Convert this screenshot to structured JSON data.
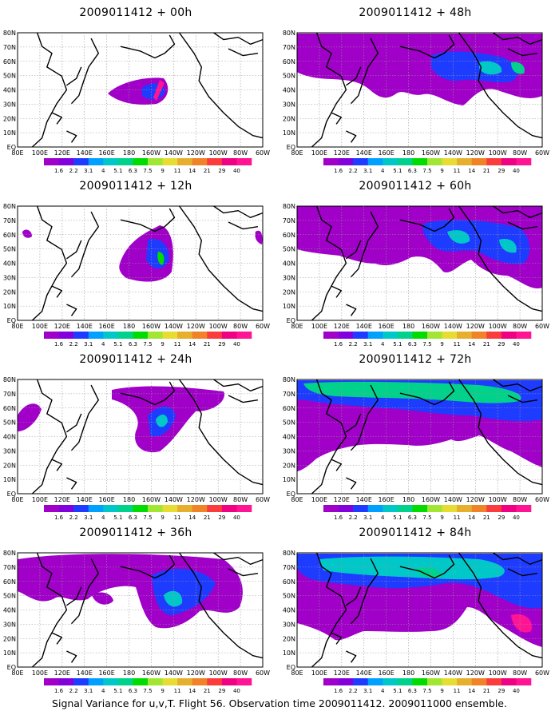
{
  "panels": [
    {
      "title": "2009011412 + 00h"
    },
    {
      "title": "2009011412 + 12h"
    },
    {
      "title": "2009011412 + 24h"
    },
    {
      "title": "2009011412 + 36h"
    },
    {
      "title": "2009011412 + 48h"
    },
    {
      "title": "2009011412 + 60h"
    },
    {
      "title": "2009011412 + 72h"
    },
    {
      "title": "2009011412 + 84h"
    }
  ],
  "lat_labels": [
    "80N",
    "70N",
    "60N",
    "50N",
    "40N",
    "30N",
    "20N",
    "10N",
    "EQ"
  ],
  "lon_labels": [
    "80E",
    "100E",
    "120E",
    "140E",
    "160E",
    "180",
    "160W",
    "140W",
    "120W",
    "100W",
    "80W",
    "60W"
  ],
  "colorbar": {
    "labels": [
      "1.6",
      "2.2",
      "3.1",
      "4",
      "5.1",
      "6.3",
      "7.5",
      "9",
      "11",
      "14",
      "21",
      "29",
      "40"
    ],
    "colors": [
      "#a000c8",
      "#8200dc",
      "#1e3cff",
      "#00a0ff",
      "#00c8c8",
      "#00d28c",
      "#00dc00",
      "#a0e632",
      "#e6dc32",
      "#e6af2d",
      "#f08228",
      "#fa3c3c",
      "#f00082",
      "#ff1493"
    ]
  },
  "footer": "Signal Variance for u,v,T. Flight 56. Observation time 2009011412. 2009011000 ensemble."
}
